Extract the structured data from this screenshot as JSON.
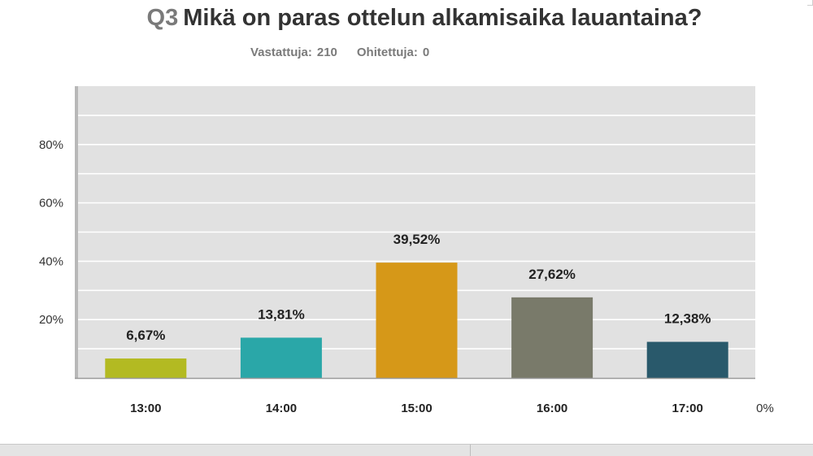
{
  "question": {
    "number": "Q3",
    "text": "Mikä on paras ottelun alkamisaika lauantaina?"
  },
  "stats": {
    "answered_label": "Vastattuja:",
    "answered_value": "210",
    "skipped_label": "Ohitettuja:",
    "skipped_value": "0"
  },
  "chart_data": {
    "type": "bar",
    "categories": [
      "13:00",
      "14:00",
      "15:00",
      "16:00",
      "17:00"
    ],
    "values": [
      6.67,
      13.81,
      39.52,
      27.62,
      12.38
    ],
    "value_labels": [
      "6,67%",
      "13,81%",
      "39,52%",
      "27,62%",
      "12,38%"
    ],
    "colors": [
      "#b3ba22",
      "#2aa7a8",
      "#d69818",
      "#797a6a",
      "#29596b"
    ],
    "ytick_values": [
      20,
      40,
      60,
      80
    ],
    "ytick_labels": [
      "20%",
      "40%",
      "60%",
      "80%"
    ],
    "zero_label": "0%",
    "ylim": [
      0,
      100
    ],
    "grid": true,
    "plot_background": "#e1e1e1",
    "title": "",
    "xlabel": "",
    "ylabel": ""
  }
}
